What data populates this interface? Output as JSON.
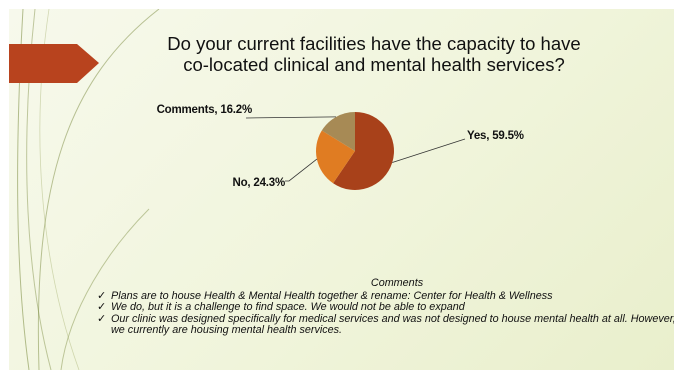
{
  "slide": {
    "title_lines": [
      "Do your current facilities have the capacity to have",
      "co-located clinical and mental health services?"
    ],
    "comments_heading": "Comments",
    "comments": [
      "Plans are to house Health & Mental Health together & rename: Center for Health & Wellness",
      "We do, but it is a challenge to find space.  We would not be able to expand",
      "Our clinic was designed specifically for medical services and was not designed to house mental health at all. However, we currently are housing mental health services."
    ],
    "check_glyph": "✓",
    "colors": {
      "accent_arrow": "#b8431e",
      "line_green": "#7a8a3e"
    }
  },
  "chart_data": {
    "type": "pie",
    "title": "",
    "categories": [
      "Yes",
      "No",
      "Comments"
    ],
    "values": [
      59.5,
      24.3,
      16.2
    ],
    "colors": [
      "#a8411a",
      "#e07c22",
      "#a78a55"
    ],
    "data_labels": [
      "Yes, 59.5%",
      "No, 24.3%",
      "Comments, 16.2%"
    ],
    "start_angle": "12 o'clock",
    "direction": "clockwise",
    "legend": "none"
  }
}
